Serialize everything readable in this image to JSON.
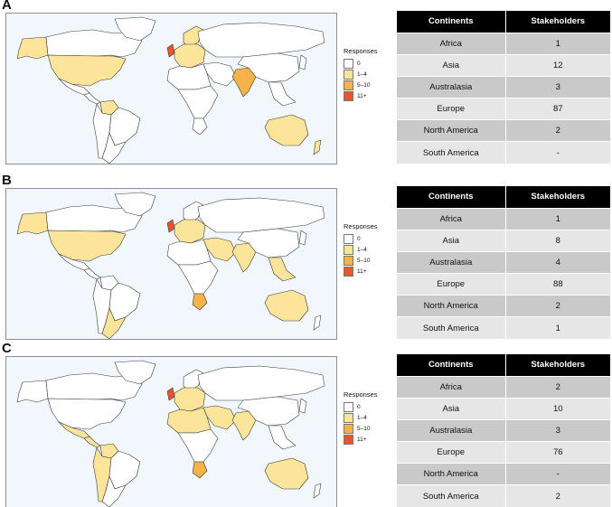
{
  "legend": {
    "title": "Responses",
    "items": [
      {
        "label": "0",
        "color": "#ffffff"
      },
      {
        "label": "1–4",
        "color": "#fce49a"
      },
      {
        "label": "5–10",
        "color": "#f5b24a"
      },
      {
        "label": "11+",
        "color": "#e8542e"
      }
    ]
  },
  "table_headers": {
    "continent": "Continents",
    "stakeholders": "Stakeholders"
  },
  "panels": [
    {
      "letter": "A",
      "rows": [
        {
          "continent": "Africa",
          "stakeholders": "1"
        },
        {
          "continent": "Asia",
          "stakeholders": "12"
        },
        {
          "continent": "Australasia",
          "stakeholders": "3"
        },
        {
          "continent": "Europe",
          "stakeholders": "87"
        },
        {
          "continent": "North America",
          "stakeholders": "2"
        },
        {
          "continent": "South America",
          "stakeholders": "-"
        }
      ],
      "fills": {
        "alaska": 1,
        "canada": 0,
        "usa": 1,
        "greenland": 0,
        "mexico": 0,
        "central_america": 0,
        "venezuela": 1,
        "brazil": 0,
        "south_america_west": 0,
        "argentina": 0,
        "uk": 3,
        "europe": 1,
        "scandinavia": 1,
        "africa_north": 0,
        "africa_central": 0,
        "south_africa": 0,
        "russia": 0,
        "middle_east": 0,
        "india": 2,
        "china": 0,
        "southeast_asia": 0,
        "japan": 0,
        "australia": 1,
        "new_zealand": 1
      }
    },
    {
      "letter": "B",
      "rows": [
        {
          "continent": "Africa",
          "stakeholders": "1"
        },
        {
          "continent": "Asia",
          "stakeholders": "8"
        },
        {
          "continent": "Australasia",
          "stakeholders": "4"
        },
        {
          "continent": "Europe",
          "stakeholders": "88"
        },
        {
          "continent": "North America",
          "stakeholders": "2"
        },
        {
          "continent": "South America",
          "stakeholders": "1"
        }
      ],
      "fills": {
        "alaska": 1,
        "canada": 0,
        "usa": 1,
        "greenland": 0,
        "mexico": 0,
        "central_america": 0,
        "venezuela": 0,
        "brazil": 0,
        "south_america_west": 0,
        "argentina": 1,
        "uk": 3,
        "europe": 1,
        "scandinavia": 0,
        "africa_north": 0,
        "africa_central": 0,
        "south_africa": 2,
        "russia": 0,
        "middle_east": 1,
        "india": 1,
        "china": 0,
        "southeast_asia": 1,
        "japan": 0,
        "australia": 1,
        "new_zealand": 0
      }
    },
    {
      "letter": "C",
      "rows": [
        {
          "continent": "Africa",
          "stakeholders": "2"
        },
        {
          "continent": "Asia",
          "stakeholders": "10"
        },
        {
          "continent": "Australasia",
          "stakeholders": "3"
        },
        {
          "continent": "Europe",
          "stakeholders": "76"
        },
        {
          "continent": "North America",
          "stakeholders": "-"
        },
        {
          "continent": "South America",
          "stakeholders": "2"
        }
      ],
      "fills": {
        "alaska": 0,
        "canada": 0,
        "usa": 0,
        "greenland": 0,
        "mexico": 1,
        "central_america": 1,
        "venezuela": 1,
        "brazil": 0,
        "south_america_west": 1,
        "argentina": 0,
        "uk": 3,
        "europe": 1,
        "scandinavia": 0,
        "africa_north": 1,
        "africa_central": 0,
        "south_africa": 2,
        "russia": 0,
        "middle_east": 1,
        "india": 1,
        "china": 0,
        "southeast_asia": 0,
        "japan": 0,
        "australia": 1,
        "new_zealand": 0
      }
    }
  ]
}
